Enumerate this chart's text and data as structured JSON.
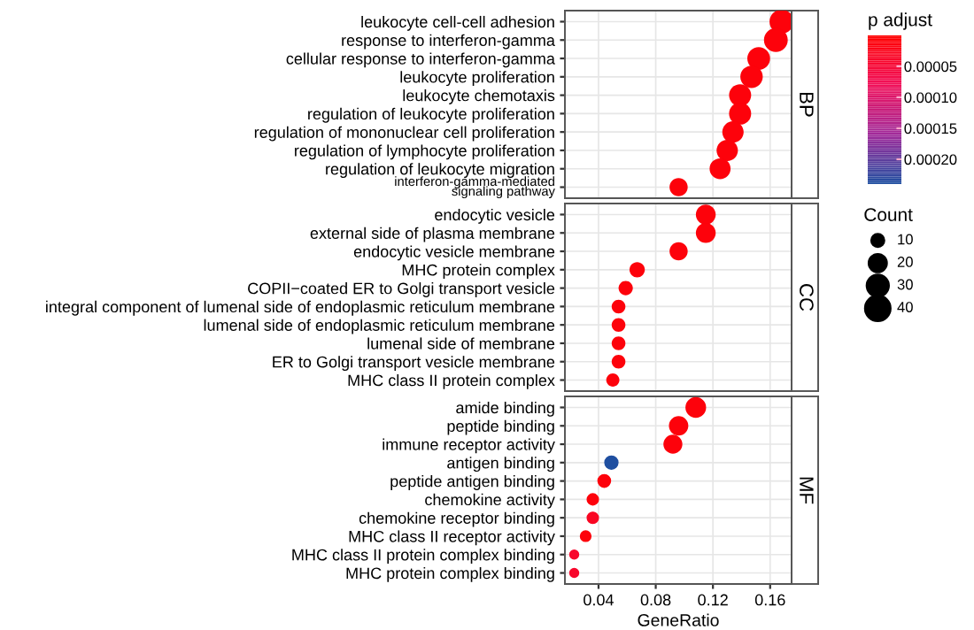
{
  "chart_data": {
    "type": "bubble",
    "xlabel": "GeneRatio",
    "categories": [
      "leukocyte cell-cell adhesion",
      "response to interferon-gamma",
      "cellular response to interferon-gamma",
      "leukocyte proliferation",
      "leukocyte chemotaxis",
      "regulation of leukocyte proliferation",
      "regulation of mononuclear cell proliferation",
      "regulation of lymphocyte proliferation",
      "regulation of leukocyte migration",
      "interferon-gamma-mediated\nsignaling pathway",
      "endocytic vesicle",
      "external side of plasma membrane",
      "endocytic vesicle membrane",
      "MHC protein complex",
      "COPII−coated ER to Golgi transport vesicle",
      "integral component of lumenal side of endoplasmic reticulum membrane",
      "lumenal side of endoplasmic reticulum membrane",
      "lumenal side of membrane",
      "ER to Golgi transport vesicle membrane",
      "MHC class II protein complex",
      "amide binding",
      "peptide binding",
      "immune receptor activity",
      "antigen binding",
      "peptide antigen binding",
      "chemokine activity",
      "chemokine receptor binding",
      "MHC class II receptor activity",
      "MHC class II protein complex binding",
      "MHC protein complex binding"
    ],
    "series": [
      {
        "name": "BP",
        "values": [
          0.168,
          0.164,
          0.152,
          0.147,
          0.139,
          0.139,
          0.134,
          0.13,
          0.125,
          0.096,
          null,
          null,
          null,
          null,
          null,
          null,
          null,
          null,
          null,
          null,
          null,
          null,
          null,
          null,
          null,
          null,
          null,
          null,
          null,
          null
        ],
        "sizes": [
          37,
          36,
          33,
          32,
          31,
          31,
          29,
          29,
          28,
          21,
          null,
          null,
          null,
          null,
          null,
          null,
          null,
          null,
          null,
          null,
          null,
          null,
          null,
          null,
          null,
          null,
          null,
          null,
          null,
          null
        ],
        "cvalues": [
          1e-05,
          1e-05,
          1e-05,
          1e-05,
          1e-05,
          1e-05,
          1e-05,
          1e-05,
          1e-05,
          1e-05,
          null,
          null,
          null,
          null,
          null,
          null,
          null,
          null,
          null,
          null,
          null,
          null,
          null,
          null,
          null,
          null,
          null,
          null,
          null,
          null
        ]
      },
      {
        "name": "CC",
        "values": [
          null,
          null,
          null,
          null,
          null,
          null,
          null,
          null,
          null,
          null,
          0.115,
          0.115,
          0.096,
          0.067,
          0.059,
          0.054,
          0.054,
          0.054,
          0.054,
          0.05,
          null,
          null,
          null,
          null,
          null,
          null,
          null,
          null,
          null,
          null
        ],
        "sizes": [
          null,
          null,
          null,
          null,
          null,
          null,
          null,
          null,
          null,
          null,
          25,
          25,
          21,
          15,
          13,
          12,
          12,
          12,
          12,
          11,
          null,
          null,
          null,
          null,
          null,
          null,
          null,
          null,
          null,
          null
        ],
        "cvalues": [
          null,
          null,
          null,
          null,
          null,
          null,
          null,
          null,
          null,
          null,
          1e-05,
          1e-05,
          1e-05,
          1e-05,
          1e-05,
          1e-05,
          1e-05,
          1e-05,
          1e-05,
          1e-05,
          null,
          null,
          null,
          null,
          null,
          null,
          null,
          null,
          null,
          null
        ]
      },
      {
        "name": "MF",
        "values": [
          null,
          null,
          null,
          null,
          null,
          null,
          null,
          null,
          null,
          null,
          null,
          null,
          null,
          null,
          null,
          null,
          null,
          null,
          null,
          null,
          0.108,
          0.096,
          0.092,
          0.049,
          0.044,
          0.036,
          0.036,
          0.031,
          0.023,
          0.023
        ],
        "sizes": [
          null,
          null,
          null,
          null,
          null,
          null,
          null,
          null,
          null,
          null,
          null,
          null,
          null,
          null,
          null,
          null,
          null,
          null,
          null,
          null,
          24,
          21,
          20,
          11,
          10,
          8,
          8,
          7,
          5,
          5
        ],
        "cvalues": [
          null,
          null,
          null,
          null,
          null,
          null,
          null,
          null,
          null,
          null,
          null,
          null,
          null,
          null,
          null,
          null,
          null,
          null,
          null,
          null,
          1e-05,
          1e-05,
          1e-05,
          0.00024,
          1e-05,
          1e-05,
          3e-05,
          1e-05,
          4e-05,
          4e-05
        ],
        "colors": [
          null,
          null,
          null,
          null,
          null,
          null,
          null,
          null,
          null,
          null,
          null,
          null,
          null,
          null,
          null,
          null,
          null,
          null,
          null,
          null,
          "#fd020b",
          "#fd020b",
          "#fd020b",
          "#1f4fa0",
          "#fd020b",
          "#fd020b",
          "#f90622",
          "#fd020b",
          "#f8082d",
          "#f8082d"
        ]
      }
    ],
    "orientation": "horizontal",
    "xlim": [
      0.0165,
      0.175
    ],
    "xticks": [
      0.04,
      0.08,
      0.12,
      0.16
    ],
    "grid": true,
    "clabel": "p adjust",
    "clim": [
      0,
      0.00024
    ],
    "cticks": [
      {
        "value": 5e-05,
        "label": "0.00005"
      },
      {
        "value": 0.0001,
        "label": "0.00010"
      },
      {
        "value": 0.00015,
        "label": "0.00015"
      },
      {
        "value": 0.0002,
        "label": "0.00020"
      }
    ],
    "legend_title": "Count",
    "size_legend": [
      10,
      20,
      30,
      40
    ]
  }
}
